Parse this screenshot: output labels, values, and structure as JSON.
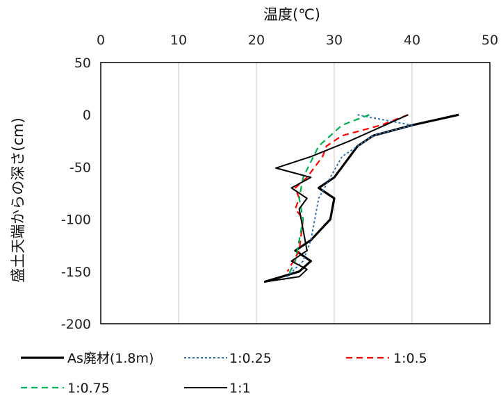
{
  "chart_data": {
    "type": "line",
    "xlabel": "温度(℃)",
    "ylabel": "盛土天端からの深さ(cm)",
    "xlim": [
      0,
      50
    ],
    "ylim": [
      -200,
      50
    ],
    "xticks": [
      0,
      10,
      20,
      30,
      40,
      50
    ],
    "yticks": [
      50,
      0,
      -50,
      -100,
      -150,
      -200
    ],
    "xtick_labels": [
      "0",
      "10",
      "20",
      "30",
      "40",
      "50"
    ],
    "ytick_labels": [
      "50",
      "0",
      "-50",
      "-100",
      "-150",
      "-200"
    ],
    "x_axis_position": "top",
    "grid": "vertical",
    "legend_position": "bottom",
    "series": [
      {
        "name": "As廃材(1.8m)",
        "color": "#000000",
        "style": "solid-thick",
        "points": [
          [
            46,
            0
          ],
          [
            40,
            -10
          ],
          [
            35,
            -20
          ],
          [
            33,
            -30
          ],
          [
            31,
            -50
          ],
          [
            30,
            -60
          ],
          [
            28,
            -70
          ],
          [
            30,
            -80
          ],
          [
            29.5,
            -100
          ],
          [
            27,
            -120
          ],
          [
            25,
            -130
          ],
          [
            27,
            -140
          ],
          [
            25.5,
            -150
          ],
          [
            21,
            -160
          ]
        ]
      },
      {
        "name": "1:0.25",
        "color": "#2e75b6",
        "style": "dotted",
        "points": [
          [
            33,
            0
          ],
          [
            35,
            -3
          ],
          [
            40,
            -10
          ],
          [
            35,
            -20
          ],
          [
            31,
            -40
          ],
          [
            29.5,
            -60
          ],
          [
            28,
            -80
          ],
          [
            27.5,
            -100
          ],
          [
            27,
            -120
          ],
          [
            26,
            -140
          ],
          [
            23.5,
            -158
          ]
        ]
      },
      {
        "name": "1:0.5",
        "color": "#ff0000",
        "style": "dashed",
        "points": [
          [
            39.5,
            0
          ],
          [
            36,
            -10
          ],
          [
            31,
            -20
          ],
          [
            29,
            -30
          ],
          [
            28.5,
            -40
          ],
          [
            27.5,
            -50
          ],
          [
            26.5,
            -60
          ],
          [
            25,
            -70
          ],
          [
            25.5,
            -80
          ],
          [
            25,
            -90
          ],
          [
            26,
            -100
          ],
          [
            25.5,
            -130
          ],
          [
            24,
            -150
          ]
        ]
      },
      {
        "name": "1:0.75",
        "color": "#00b050",
        "style": "dashed",
        "points": [
          [
            34.5,
            0
          ],
          [
            31,
            -10
          ],
          [
            29.5,
            -20
          ],
          [
            28,
            -30
          ],
          [
            27,
            -45
          ],
          [
            26,
            -60
          ],
          [
            25.5,
            -80
          ],
          [
            26,
            -100
          ],
          [
            25.5,
            -120
          ],
          [
            25,
            -140
          ],
          [
            24,
            -155
          ]
        ]
      },
      {
        "name": "1:1",
        "color": "#000000",
        "style": "solid-thin",
        "points": [
          [
            39.5,
            0
          ],
          [
            32,
            -25
          ],
          [
            27,
            -40
          ],
          [
            22.5,
            -51
          ],
          [
            27,
            -60
          ],
          [
            24.5,
            -70
          ],
          [
            26.5,
            -80
          ],
          [
            25.5,
            -90
          ],
          [
            26,
            -110
          ],
          [
            26.5,
            -130
          ],
          [
            24.5,
            -140
          ],
          [
            26.5,
            -148
          ],
          [
            25.5,
            -155
          ],
          [
            21,
            -160
          ]
        ]
      }
    ]
  }
}
